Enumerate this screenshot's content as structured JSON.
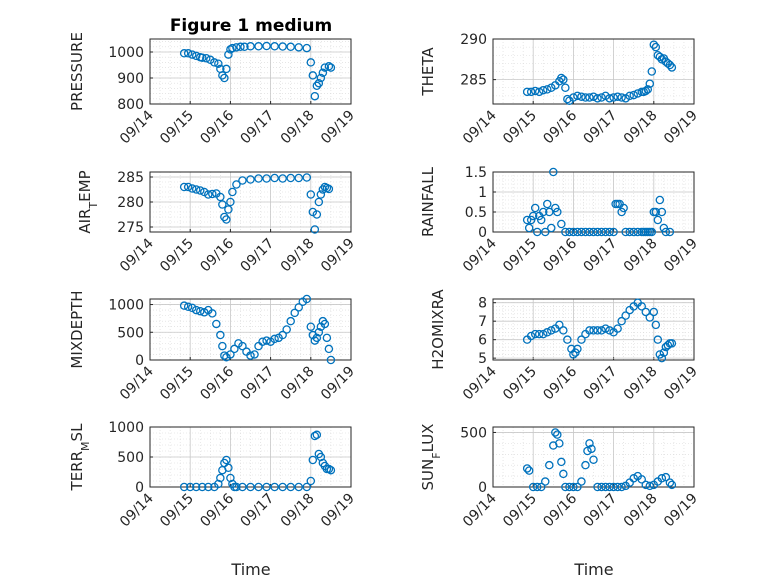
{
  "figure_title": "Figure 1 medium",
  "x_tick_labels": [
    "09/14",
    "09/15",
    "09/16",
    "09/17",
    "09/18",
    "09/19"
  ],
  "x_axis_label": "Time",
  "chart_data": [
    {
      "id": "pressure",
      "type": "scatter",
      "ylabel_main": "PRESSURE",
      "ylabel_sub": "",
      "ylim": [
        800,
        1050
      ],
      "yticks": [
        800,
        900,
        1000
      ],
      "xlim": [
        0,
        5
      ],
      "grid": true,
      "marker": "circle-open",
      "color": "#0072BD",
      "x": [
        0.85,
        0.95,
        1.05,
        1.15,
        1.25,
        1.3,
        1.4,
        1.5,
        1.6,
        1.7,
        1.75,
        1.8,
        1.85,
        1.9,
        1.95,
        2.0,
        2.05,
        2.15,
        2.25,
        2.35,
        2.5,
        2.7,
        2.9,
        3.1,
        3.3,
        3.5,
        3.7,
        3.9,
        4.0,
        4.05,
        4.1,
        4.15,
        4.2,
        4.25,
        4.3,
        4.35,
        4.45,
        4.5
      ],
      "y": [
        995,
        995,
        990,
        985,
        980,
        978,
        976,
        970,
        960,
        955,
        935,
        910,
        900,
        935,
        990,
        1010,
        1015,
        1018,
        1020,
        1020,
        1022,
        1022,
        1023,
        1022,
        1021,
        1020,
        1018,
        1015,
        960,
        910,
        830,
        870,
        880,
        900,
        920,
        940,
        945,
        940
      ]
    },
    {
      "id": "theta",
      "type": "scatter",
      "ylabel_main": "THETA",
      "ylabel_sub": "",
      "ylim": [
        282,
        290
      ],
      "yticks": [
        285,
        290
      ],
      "xlim": [
        0,
        5
      ],
      "grid": true,
      "marker": "circle-open",
      "color": "#0072BD",
      "x": [
        0.85,
        0.95,
        1.05,
        1.15,
        1.25,
        1.35,
        1.45,
        1.55,
        1.65,
        1.7,
        1.75,
        1.8,
        1.85,
        1.9,
        2.0,
        2.1,
        2.2,
        2.3,
        2.4,
        2.5,
        2.6,
        2.7,
        2.8,
        2.9,
        3.0,
        3.1,
        3.2,
        3.3,
        3.4,
        3.5,
        3.6,
        3.7,
        3.75,
        3.8,
        3.85,
        3.9,
        3.95,
        4.0,
        4.05,
        4.1,
        4.15,
        4.2,
        4.25,
        4.3,
        4.35,
        4.4,
        4.45
      ],
      "y": [
        283.5,
        283.5,
        283.6,
        283.5,
        283.7,
        283.8,
        284.0,
        284.3,
        284.8,
        285.2,
        285.0,
        284.0,
        282.6,
        282.4,
        282.8,
        283.0,
        282.9,
        282.8,
        282.8,
        282.9,
        282.7,
        282.8,
        283.0,
        282.7,
        282.8,
        282.9,
        282.8,
        282.7,
        283.0,
        283.1,
        283.3,
        283.5,
        283.5,
        283.6,
        283.8,
        284.5,
        286.0,
        289.3,
        289.0,
        288.0,
        287.8,
        287.5,
        287.6,
        287.2,
        287.0,
        286.8,
        286.5
      ]
    },
    {
      "id": "air_temp",
      "type": "scatter",
      "ylabel_main": "AIR",
      "ylabel_sub": "T",
      "ylabel_rest": "EMP",
      "ylim": [
        274,
        286
      ],
      "yticks": [
        275,
        280,
        285
      ],
      "xlim": [
        0,
        5
      ],
      "grid": true,
      "marker": "circle-open",
      "color": "#0072BD",
      "x": [
        0.85,
        0.95,
        1.05,
        1.15,
        1.25,
        1.35,
        1.45,
        1.55,
        1.65,
        1.75,
        1.8,
        1.85,
        1.9,
        1.95,
        2.0,
        2.05,
        2.15,
        2.3,
        2.5,
        2.7,
        2.9,
        3.1,
        3.3,
        3.5,
        3.7,
        3.9,
        4.0,
        4.05,
        4.1,
        4.15,
        4.2,
        4.25,
        4.3,
        4.35,
        4.4,
        4.45
      ],
      "y": [
        283.0,
        283.0,
        282.7,
        282.5,
        282.3,
        282.0,
        281.5,
        281.6,
        281.7,
        281.0,
        279.5,
        277.0,
        276.5,
        278.5,
        280.0,
        282.0,
        283.5,
        284.3,
        284.5,
        284.7,
        284.7,
        284.8,
        284.7,
        284.8,
        284.8,
        284.9,
        281.5,
        278.0,
        274.5,
        277.5,
        280.0,
        281.5,
        282.5,
        283.0,
        282.8,
        282.6
      ]
    },
    {
      "id": "rainfall",
      "type": "scatter",
      "ylabel_main": "RAINFALL",
      "ylabel_sub": "",
      "ylim": [
        0,
        1.5
      ],
      "yticks": [
        0,
        0.5,
        1,
        1.5
      ],
      "xlim": [
        0,
        5
      ],
      "grid": true,
      "marker": "circle-open",
      "color": "#0072BD",
      "x": [
        0.85,
        0.9,
        0.95,
        1.0,
        1.05,
        1.1,
        1.15,
        1.2,
        1.25,
        1.3,
        1.35,
        1.4,
        1.45,
        1.5,
        1.55,
        1.6,
        1.7,
        1.8,
        1.9,
        2.0,
        2.1,
        2.2,
        2.3,
        2.4,
        2.5,
        2.6,
        2.7,
        2.8,
        2.9,
        3.0,
        3.05,
        3.1,
        3.15,
        3.2,
        3.25,
        3.3,
        3.4,
        3.5,
        3.6,
        3.7,
        3.75,
        3.8,
        3.85,
        3.9,
        3.95,
        4.0,
        4.05,
        4.1,
        4.15,
        4.2,
        4.25,
        4.3,
        4.4
      ],
      "y": [
        0.3,
        0.1,
        0.3,
        0.4,
        0.6,
        0.0,
        0.4,
        0.3,
        0.5,
        0.0,
        0.7,
        0.5,
        0.1,
        1.5,
        0.6,
        0.5,
        0.2,
        0,
        0,
        0,
        0,
        0,
        0,
        0,
        0,
        0,
        0,
        0,
        0,
        0,
        0.7,
        0.7,
        0.7,
        0.5,
        0.6,
        0,
        0,
        0,
        0,
        0,
        0,
        0,
        0,
        0,
        0,
        0.5,
        0.5,
        0.3,
        0.8,
        0.5,
        0.1,
        0,
        0
      ]
    },
    {
      "id": "mixdepth",
      "type": "scatter",
      "ylabel_main": "MIXDEPTH",
      "ylabel_sub": "",
      "ylim": [
        0,
        1100
      ],
      "yticks": [
        0,
        500,
        1000
      ],
      "xlim": [
        0,
        5
      ],
      "grid": true,
      "marker": "circle-open",
      "color": "#0072BD",
      "x": [
        0.85,
        0.95,
        1.05,
        1.15,
        1.25,
        1.35,
        1.45,
        1.55,
        1.65,
        1.75,
        1.8,
        1.85,
        1.9,
        2.0,
        2.1,
        2.2,
        2.3,
        2.4,
        2.5,
        2.6,
        2.7,
        2.8,
        2.9,
        3.0,
        3.1,
        3.2,
        3.3,
        3.4,
        3.5,
        3.6,
        3.7,
        3.8,
        3.9,
        4.0,
        4.05,
        4.1,
        4.15,
        4.2,
        4.25,
        4.3,
        4.35,
        4.4,
        4.45,
        4.5
      ],
      "y": [
        980,
        960,
        940,
        900,
        880,
        860,
        900,
        840,
        650,
        450,
        250,
        80,
        50,
        100,
        200,
        300,
        250,
        150,
        80,
        100,
        250,
        330,
        350,
        330,
        380,
        400,
        450,
        550,
        700,
        850,
        950,
        1050,
        1100,
        600,
        450,
        350,
        400,
        500,
        600,
        700,
        650,
        400,
        200,
        0
      ]
    },
    {
      "id": "h2omixra",
      "type": "scatter",
      "ylabel_main": "H2OMIXRA",
      "ylabel_sub": "",
      "ylim": [
        4.9,
        8.2
      ],
      "yticks": [
        5,
        6,
        7,
        8
      ],
      "xlim": [
        0,
        5
      ],
      "grid": true,
      "marker": "circle-open",
      "color": "#0072BD",
      "x": [
        0.85,
        0.95,
        1.05,
        1.15,
        1.25,
        1.35,
        1.45,
        1.55,
        1.65,
        1.75,
        1.85,
        1.95,
        2.0,
        2.05,
        2.1,
        2.2,
        2.3,
        2.4,
        2.5,
        2.6,
        2.7,
        2.8,
        2.9,
        3.0,
        3.1,
        3.2,
        3.3,
        3.4,
        3.5,
        3.6,
        3.7,
        3.8,
        3.9,
        4.0,
        4.05,
        4.1,
        4.15,
        4.2,
        4.25,
        4.3,
        4.35,
        4.4,
        4.45
      ],
      "y": [
        6.0,
        6.2,
        6.3,
        6.3,
        6.3,
        6.4,
        6.5,
        6.6,
        6.8,
        6.5,
        6.0,
        5.5,
        5.2,
        5.3,
        5.5,
        6.0,
        6.3,
        6.5,
        6.5,
        6.5,
        6.5,
        6.6,
        6.5,
        6.4,
        6.6,
        7.0,
        7.3,
        7.6,
        7.8,
        8.0,
        7.8,
        7.5,
        7.2,
        7.5,
        6.8,
        6.0,
        5.2,
        5.0,
        5.3,
        5.6,
        5.7,
        5.8,
        5.8
      ]
    },
    {
      "id": "terr_msl",
      "type": "scatter",
      "ylabel_main": "TERR",
      "ylabel_sub": "M",
      "ylabel_rest": "SL",
      "ylim": [
        0,
        1000
      ],
      "yticks": [
        0,
        500,
        1000
      ],
      "xlim": [
        0,
        5
      ],
      "grid": true,
      "marker": "circle-open",
      "color": "#0072BD",
      "x": [
        0.85,
        1.0,
        1.15,
        1.3,
        1.45,
        1.6,
        1.7,
        1.75,
        1.8,
        1.85,
        1.9,
        1.95,
        2.0,
        2.05,
        2.1,
        2.15,
        2.3,
        2.5,
        2.7,
        2.9,
        3.1,
        3.3,
        3.5,
        3.7,
        3.9,
        4.0,
        4.05,
        4.1,
        4.15,
        4.2,
        4.25,
        4.3,
        4.35,
        4.4,
        4.45,
        4.5
      ],
      "y": [
        0,
        0,
        0,
        0,
        0,
        0,
        50,
        150,
        280,
        400,
        450,
        320,
        150,
        50,
        0,
        0,
        0,
        0,
        0,
        0,
        0,
        0,
        0,
        0,
        0,
        100,
        450,
        850,
        870,
        550,
        500,
        400,
        350,
        300,
        300,
        280
      ]
    },
    {
      "id": "sun_flux",
      "type": "scatter",
      "ylabel_main": "SUN",
      "ylabel_sub": "F",
      "ylabel_rest": "LUX",
      "ylim": [
        0,
        550
      ],
      "yticks": [
        0,
        500
      ],
      "xlim": [
        0,
        5
      ],
      "grid": true,
      "marker": "circle-open",
      "color": "#0072BD",
      "x": [
        0.85,
        0.9,
        1.0,
        1.1,
        1.2,
        1.3,
        1.4,
        1.5,
        1.55,
        1.6,
        1.65,
        1.7,
        1.75,
        1.8,
        1.9,
        2.0,
        2.1,
        2.2,
        2.3,
        2.35,
        2.4,
        2.45,
        2.5,
        2.6,
        2.7,
        2.8,
        2.9,
        3.0,
        3.1,
        3.2,
        3.3,
        3.4,
        3.5,
        3.6,
        3.7,
        3.8,
        3.9,
        4.0,
        4.1,
        4.2,
        4.3,
        4.4,
        4.45
      ],
      "y": [
        170,
        150,
        0,
        0,
        0,
        50,
        200,
        380,
        500,
        480,
        400,
        230,
        120,
        0,
        0,
        0,
        0,
        50,
        200,
        330,
        400,
        350,
        250,
        0,
        0,
        0,
        0,
        0,
        0,
        0,
        10,
        40,
        80,
        100,
        70,
        20,
        10,
        20,
        50,
        80,
        90,
        40,
        20
      ]
    }
  ]
}
